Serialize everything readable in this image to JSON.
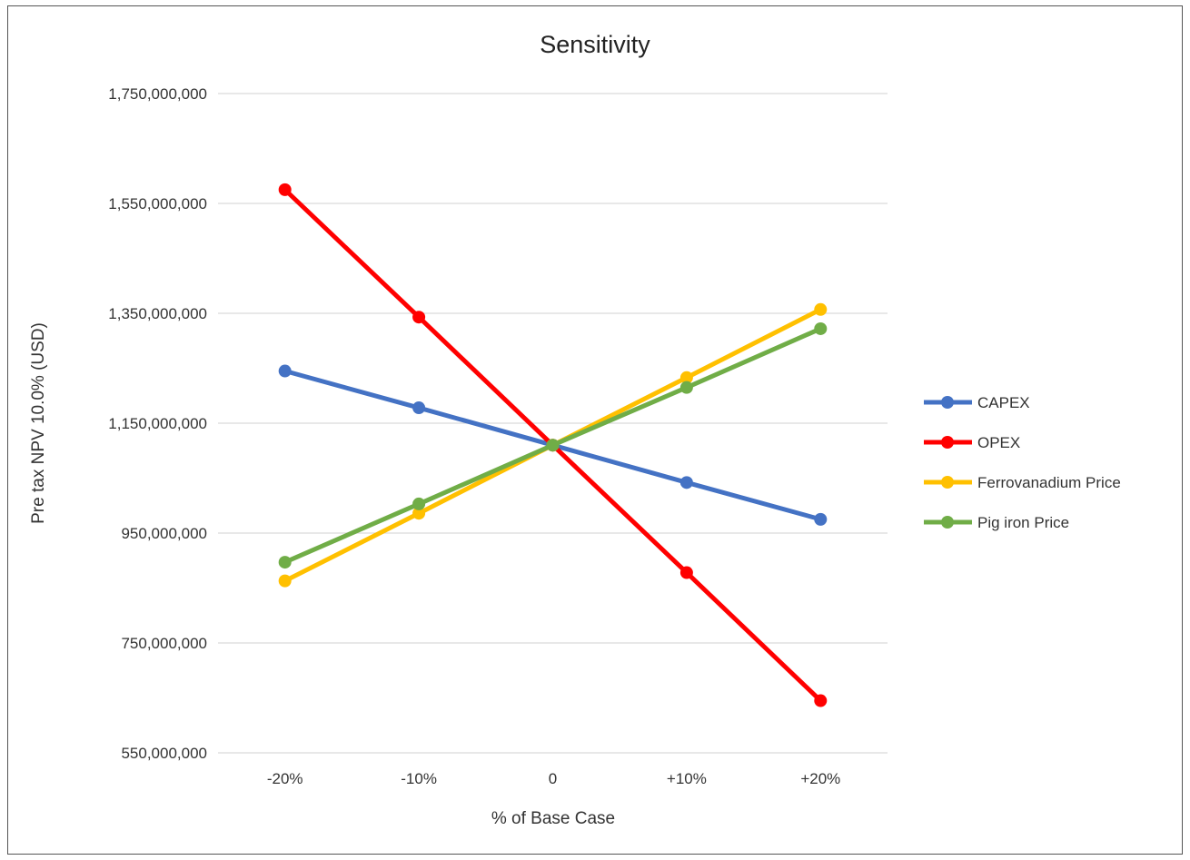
{
  "chart_data": {
    "type": "line",
    "title": "Sensitivity",
    "xlabel": "% of Base Case",
    "ylabel": "Pre tax NPV 10.0% (USD)",
    "categories": [
      "-20%",
      "-10%",
      "0",
      "+10%",
      "+20%"
    ],
    "ylim": [
      550000000,
      1750000000
    ],
    "yticks": [
      550000000,
      750000000,
      950000000,
      1150000000,
      1350000000,
      1550000000,
      1750000000
    ],
    "ytick_labels": [
      "550,000,000",
      "750,000,000",
      "950,000,000",
      "1,150,000,000",
      "1,350,000,000",
      "1,550,000,000",
      "1,750,000,000"
    ],
    "grid": true,
    "legend_position": "right",
    "series": [
      {
        "name": "CAPEX",
        "color": "#4472C4",
        "values": [
          1245000000,
          1178000000,
          1110000000,
          1042000000,
          975000000
        ]
      },
      {
        "name": "OPEX",
        "color": "#FF0000",
        "values": [
          1575000000,
          1343000000,
          1110000000,
          878000000,
          645000000
        ]
      },
      {
        "name": "Ferrovanadium Price",
        "color": "#FFC000",
        "values": [
          863000000,
          986000000,
          1110000000,
          1233000000,
          1357000000
        ]
      },
      {
        "name": "Pig iron Price",
        "color": "#70AD47",
        "values": [
          897000000,
          1003000000,
          1110000000,
          1215000000,
          1322000000
        ]
      }
    ]
  }
}
